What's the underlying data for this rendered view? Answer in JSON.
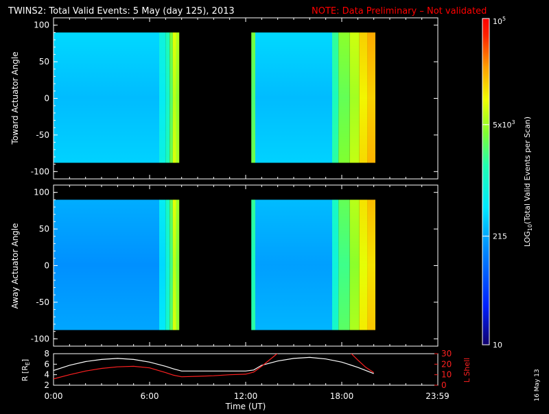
{
  "title": {
    "main": "TWINS2: Total Valid Events:  5 May (day 125), 2013",
    "note": "NOTE: Data Preliminary – Not validated"
  },
  "stamp": "16 May 13",
  "colors": {
    "note": "#ff0000",
    "axes": "#ffffff",
    "lshell": "#ff2020",
    "radius": "#ffffff"
  },
  "chart_data": [
    {
      "type": "heatmap",
      "name": "toward",
      "ylabel": "Toward Actuator Angle",
      "ylim": [
        -110,
        110
      ],
      "yticks": [
        "100",
        "50",
        "0",
        "-50",
        "-100"
      ],
      "ytick_values": [
        100,
        50,
        0,
        -50,
        -100
      ],
      "xlim_hours": [
        0,
        24
      ],
      "data_extent_deg": [
        -88,
        90
      ],
      "segments": [
        {
          "start_h": 0.0,
          "end_h": 7.85,
          "bands": [
            {
              "start_h": 0.0,
              "end_h": 6.6,
              "level": 0.38
            },
            {
              "start_h": 6.6,
              "end_h": 7.0,
              "level": 0.46
            },
            {
              "start_h": 7.0,
              "end_h": 7.25,
              "level": 0.52
            },
            {
              "start_h": 7.25,
              "end_h": 7.45,
              "level": 0.62
            },
            {
              "start_h": 7.45,
              "end_h": 7.65,
              "level": 0.72
            },
            {
              "start_h": 7.65,
              "end_h": 7.85,
              "level": 0.68
            }
          ]
        },
        {
          "start_h": 12.35,
          "end_h": 20.1,
          "bands": [
            {
              "start_h": 12.35,
              "end_h": 12.6,
              "level": 0.62
            },
            {
              "start_h": 12.6,
              "end_h": 17.4,
              "level": 0.38
            },
            {
              "start_h": 17.4,
              "end_h": 17.8,
              "level": 0.55
            },
            {
              "start_h": 17.8,
              "end_h": 18.5,
              "level": 0.64
            },
            {
              "start_h": 18.5,
              "end_h": 19.1,
              "level": 0.7
            },
            {
              "start_h": 19.1,
              "end_h": 19.6,
              "level": 0.78
            },
            {
              "start_h": 19.6,
              "end_h": 20.1,
              "level": 0.82
            }
          ]
        }
      ]
    },
    {
      "type": "heatmap",
      "name": "away",
      "ylabel": "Away Actuator Angle",
      "ylim": [
        -110,
        110
      ],
      "yticks": [
        "100",
        "50",
        "0",
        "-50",
        "-100"
      ],
      "ytick_values": [
        100,
        50,
        0,
        -50,
        -100
      ],
      "xlim_hours": [
        0,
        24
      ],
      "data_extent_deg": [
        -88,
        90
      ],
      "segments": [
        {
          "start_h": 0.0,
          "end_h": 7.85,
          "bands": [
            {
              "start_h": 0.0,
              "end_h": 6.6,
              "level": 0.32
            },
            {
              "start_h": 6.6,
              "end_h": 7.0,
              "level": 0.42
            },
            {
              "start_h": 7.0,
              "end_h": 7.25,
              "level": 0.5
            },
            {
              "start_h": 7.25,
              "end_h": 7.45,
              "level": 0.6
            },
            {
              "start_h": 7.45,
              "end_h": 7.65,
              "level": 0.72
            },
            {
              "start_h": 7.65,
              "end_h": 7.85,
              "level": 0.66
            }
          ]
        },
        {
          "start_h": 12.35,
          "end_h": 20.1,
          "bands": [
            {
              "start_h": 12.35,
              "end_h": 12.6,
              "level": 0.55
            },
            {
              "start_h": 12.6,
              "end_h": 17.4,
              "level": 0.34
            },
            {
              "start_h": 17.4,
              "end_h": 17.8,
              "level": 0.5
            },
            {
              "start_h": 17.8,
              "end_h": 18.5,
              "level": 0.6
            },
            {
              "start_h": 18.5,
              "end_h": 19.1,
              "level": 0.68
            },
            {
              "start_h": 19.1,
              "end_h": 19.6,
              "level": 0.76
            },
            {
              "start_h": 19.6,
              "end_h": 20.1,
              "level": 0.8
            }
          ]
        }
      ]
    },
    {
      "type": "line",
      "name": "orbit",
      "ylabel_left": "R [R",
      "ylabel_left_sub": "E",
      "ylabel_left_end": "]",
      "ylabel_right": "L Shell",
      "ylim_left": [
        2,
        8
      ],
      "ylim_right": [
        0,
        30
      ],
      "yticks_left": [
        "8",
        "6",
        "4",
        "2"
      ],
      "yticks_left_values": [
        8,
        6,
        4,
        2
      ],
      "yticks_right": [
        "30",
        "20",
        "10",
        "0"
      ],
      "yticks_right_values": [
        30,
        20,
        10,
        0
      ],
      "xlabel": "Time (UT)",
      "xticks": [
        "0:00",
        "6:00",
        "12:00",
        "18:00",
        "23:59"
      ],
      "xtick_values": [
        0,
        6,
        12,
        18,
        23.98
      ],
      "series": [
        {
          "axis": "left",
          "x": [
            0,
            1,
            2,
            3,
            4,
            5,
            6,
            7,
            7.5,
            8,
            9,
            10,
            11,
            12,
            12.5,
            13,
            14,
            15,
            16,
            17,
            18,
            19,
            20
          ],
          "y": [
            4.8,
            5.8,
            6.5,
            6.9,
            7.1,
            6.9,
            6.4,
            5.6,
            5.1,
            4.7,
            4.7,
            4.7,
            4.7,
            4.7,
            4.9,
            5.8,
            6.6,
            7.1,
            7.3,
            7.0,
            6.4,
            5.4,
            4.2
          ]
        },
        {
          "axis": "right",
          "x": [
            0,
            1,
            2,
            3,
            4,
            5,
            6,
            7,
            7.5,
            8,
            9,
            10,
            11,
            12,
            12.5,
            13,
            13.8,
            14.2,
            18.4,
            19,
            19.5,
            20
          ],
          "y": [
            6,
            10,
            13.5,
            16,
            17.5,
            18,
            16.5,
            12,
            9.5,
            8,
            8.5,
            9,
            10,
            10.5,
            12.5,
            18,
            28,
            33,
            33,
            24,
            17,
            12
          ]
        }
      ]
    },
    {
      "type": "colorbar",
      "label_prefix": "LOG",
      "label_sub": "10",
      "label_suffix": "(Total Valid  Events per Scan)",
      "range": [
        10,
        100000
      ],
      "ticks": [
        {
          "label": "10",
          "value": 10
        },
        {
          "label": "215",
          "value": 215
        },
        {
          "label": "5x10",
          "sup": "3",
          "value": 5000
        },
        {
          "label": "10",
          "sup": "5",
          "value": 100000
        }
      ]
    }
  ]
}
